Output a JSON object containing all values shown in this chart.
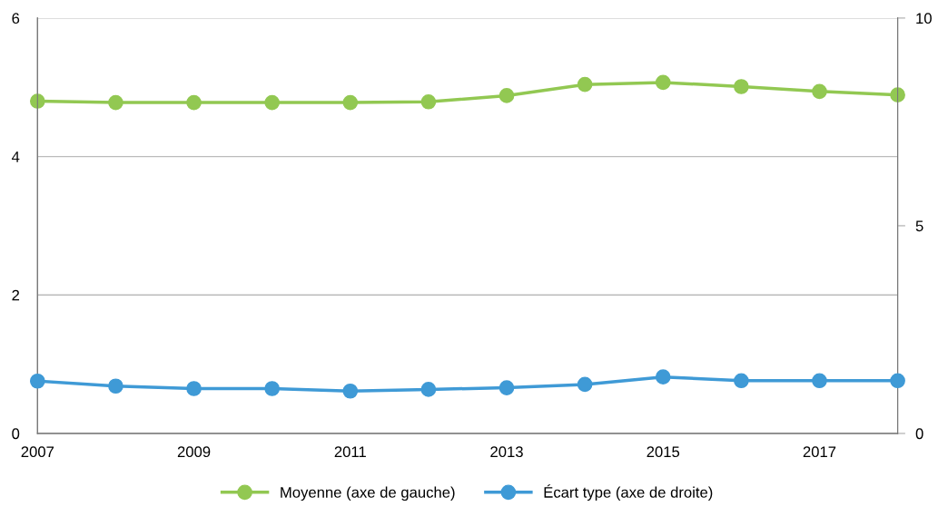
{
  "chart_data": {
    "type": "line",
    "x": [
      2007,
      2008,
      2009,
      2010,
      2011,
      2012,
      2013,
      2014,
      2015,
      2016,
      2017,
      2018
    ],
    "series": [
      {
        "name": "Moyenne (axe de gauche)",
        "color": "#92c852",
        "values": [
          4.8,
          4.78,
          4.78,
          4.78,
          4.78,
          4.79,
          4.88,
          5.04,
          5.07,
          5.01,
          4.94,
          4.89
        ]
      },
      {
        "name": "Écart type (axe de droite)",
        "color": "#3f9ad6",
        "axis": "y2",
        "values": [
          1.26,
          1.14,
          1.08,
          1.08,
          1.02,
          1.06,
          1.1,
          1.18,
          1.36,
          1.27,
          1.27,
          1.27
        ]
      }
    ],
    "xlim": [
      2007,
      2018
    ],
    "xticks": [
      2007,
      2009,
      2011,
      2013,
      2015,
      2017
    ],
    "ylim": [
      0,
      6
    ],
    "yticks": [
      0,
      2,
      4,
      6
    ],
    "y2lim": [
      0,
      10
    ],
    "y2ticks": [
      0,
      5,
      10
    ],
    "grid": "y",
    "legend": "bottom",
    "marker": "circle",
    "line_style": "solid"
  }
}
